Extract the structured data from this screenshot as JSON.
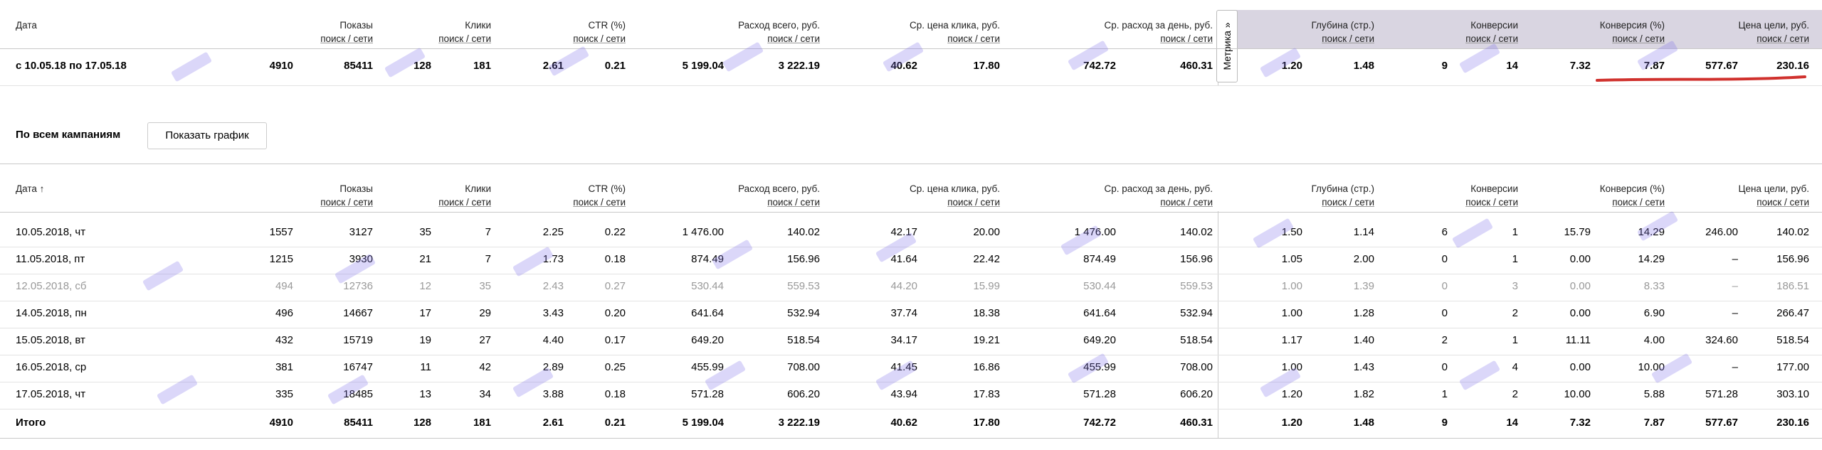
{
  "columns": {
    "date": "Дата",
    "date_sorted": "Дата ↑",
    "sub": "поиск / сети",
    "shows": "Показы",
    "clicks": "Клики",
    "ctr": "CTR (%)",
    "spend": "Расход всего, руб.",
    "cpc": "Ср. цена клика, руб.",
    "daily": "Ср. расход за день, руб.",
    "depth": "Глубина (стр.)",
    "conv": "Конверсии",
    "convrate": "Конверсия (%)",
    "goalprice": "Цена цели, руб."
  },
  "metrika_tab": "Метрика »",
  "summary": {
    "period": "с 10.05.18 по 17.05.18",
    "values": [
      "4910",
      "85411",
      "128",
      "181",
      "2.61",
      "0.21",
      "5 199.04",
      "3 222.19",
      "40.62",
      "17.80",
      "742.72",
      "460.31",
      "1.20",
      "1.48",
      "9",
      "14",
      "7.32",
      "7.87",
      "577.67",
      "230.16"
    ]
  },
  "section_title": "По всем кампаниям",
  "show_chart_button": "Показать график",
  "rows": [
    {
      "date": "10.05.2018, чт",
      "values": [
        "1557",
        "3127",
        "35",
        "7",
        "2.25",
        "0.22",
        "1 476.00",
        "140.02",
        "42.17",
        "20.00",
        "1 476.00",
        "140.02",
        "1.50",
        "1.14",
        "6",
        "1",
        "15.79",
        "14.29",
        "246.00",
        "140.02"
      ],
      "muted": false
    },
    {
      "date": "11.05.2018, пт",
      "values": [
        "1215",
        "3930",
        "21",
        "7",
        "1.73",
        "0.18",
        "874.49",
        "156.96",
        "41.64",
        "22.42",
        "874.49",
        "156.96",
        "1.05",
        "2.00",
        "0",
        "1",
        "0.00",
        "14.29",
        "–",
        "156.96"
      ],
      "muted": false
    },
    {
      "date": "12.05.2018, сб",
      "values": [
        "494",
        "12736",
        "12",
        "35",
        "2.43",
        "0.27",
        "530.44",
        "559.53",
        "44.20",
        "15.99",
        "530.44",
        "559.53",
        "1.00",
        "1.39",
        "0",
        "3",
        "0.00",
        "8.33",
        "–",
        "186.51"
      ],
      "muted": true
    },
    {
      "date": "14.05.2018, пн",
      "values": [
        "496",
        "14667",
        "17",
        "29",
        "3.43",
        "0.20",
        "641.64",
        "532.94",
        "37.74",
        "18.38",
        "641.64",
        "532.94",
        "1.00",
        "1.28",
        "0",
        "2",
        "0.00",
        "6.90",
        "–",
        "266.47"
      ],
      "muted": false
    },
    {
      "date": "15.05.2018, вт",
      "values": [
        "432",
        "15719",
        "19",
        "27",
        "4.40",
        "0.17",
        "649.20",
        "518.54",
        "34.17",
        "19.21",
        "649.20",
        "518.54",
        "1.17",
        "1.40",
        "2",
        "1",
        "11.11",
        "4.00",
        "324.60",
        "518.54"
      ],
      "muted": false
    },
    {
      "date": "16.05.2018, ср",
      "values": [
        "381",
        "16747",
        "11",
        "42",
        "2.89",
        "0.25",
        "455.99",
        "708.00",
        "41.45",
        "16.86",
        "455.99",
        "708.00",
        "1.00",
        "1.43",
        "0",
        "4",
        "0.00",
        "10.00",
        "–",
        "177.00"
      ],
      "muted": false
    },
    {
      "date": "17.05.2018, чт",
      "values": [
        "335",
        "18485",
        "13",
        "34",
        "3.88",
        "0.18",
        "571.28",
        "606.20",
        "43.94",
        "17.83",
        "571.28",
        "606.20",
        "1.20",
        "1.82",
        "1",
        "2",
        "10.00",
        "5.88",
        "571.28",
        "303.10"
      ],
      "muted": false
    }
  ],
  "total": {
    "label": "Итого",
    "values": [
      "4910",
      "85411",
      "128",
      "181",
      "2.61",
      "0.21",
      "5 199.04",
      "3 222.19",
      "40.62",
      "17.80",
      "742.72",
      "460.31",
      "1.20",
      "1.48",
      "9",
      "14",
      "7.32",
      "7.87",
      "577.67",
      "230.16"
    ]
  },
  "colors": {
    "metrika_band": "#d9d5e1",
    "highlight_underline": "#d0312d",
    "watermark": "#7d6eeb"
  }
}
